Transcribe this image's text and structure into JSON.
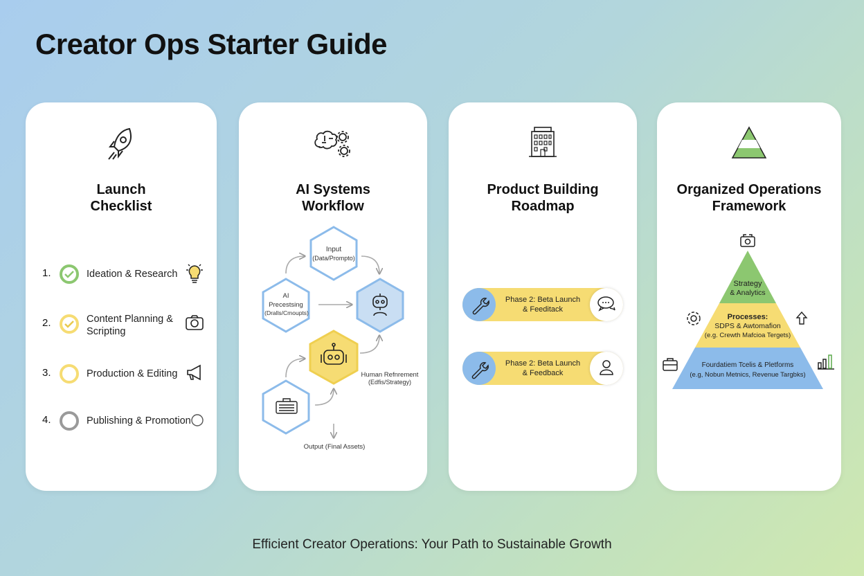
{
  "title": "Creator Ops Starter Guide",
  "footer": "Efficient Creator Operations: Your Path to Sustainable Growth",
  "colors": {
    "green": "#8cc770",
    "yellow": "#f6dc73",
    "blue": "#8cbbea",
    "grey": "#9a9a9a"
  },
  "cards": [
    {
      "title_line1": "Launch",
      "title_line2": "Checklist",
      "icon": "rocket-icon",
      "items": [
        {
          "num": "1.",
          "label": "Ideation & Research",
          "status": "done",
          "icon": "lightbulb-icon"
        },
        {
          "num": "2.",
          "label": "Content Planning & Scripting",
          "status": "done",
          "icon": "camera-icon"
        },
        {
          "num": "3.",
          "label": "Production & Editing",
          "status": "in-progress",
          "icon": "megaphone-icon"
        },
        {
          "num": "4.",
          "label": "Publishing & Promotion",
          "status": "pending",
          "icon": "circle-icon"
        }
      ]
    },
    {
      "title_line1": "AI Systems",
      "title_line2": "Workflow",
      "icon": "brain-gears-icon",
      "nodes": {
        "input1": "Input",
        "input2": "(Data/Prompto)",
        "ai1": "AI",
        "ai2": "Precestsing",
        "ai3": "(Dralls/Cmoupts)",
        "human1": "Human Refnrement",
        "human2": "(Edfis/Strategy)",
        "output": "Output (Final Assets)"
      }
    },
    {
      "title_line1": "Product Building",
      "title_line2": "Roadmap",
      "icon": "building-icon",
      "phases": [
        {
          "line1": "Phase 2: Beta Launch",
          "line2": "& Feeditack",
          "left_icon": "wrench-icon",
          "right_icon": "chat-bubbles-icon"
        },
        {
          "line1": "Phase 2: Beta Launch",
          "line2": "& Feedback",
          "left_icon": "wrench-icon",
          "right_icon": "user-icon"
        }
      ]
    },
    {
      "title_line1": "Organized Operations",
      "title_line2": "Framework",
      "icon": "pyramid-icon",
      "levels": {
        "top1": "Strategy",
        "top2": "& Analytics",
        "mid1": "Processes:",
        "mid2": "SDPS & Awtomafion",
        "mid3": "(e.g. Crewth Mafcioa Tergets)",
        "base1": "Fourdatiem Tcelis & Pletforms",
        "base2": "(e.g, Nobun Metnics, Revenue Targbks)"
      }
    }
  ]
}
